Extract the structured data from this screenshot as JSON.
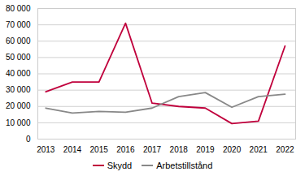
{
  "chart_data": {
    "type": "line",
    "x": [
      2013,
      2014,
      2015,
      2016,
      2017,
      2018,
      2019,
      2020,
      2021,
      2022
    ],
    "series": [
      {
        "name": "Skydd",
        "color": "#c0003c",
        "values": [
          29000,
          35000,
          35000,
          71000,
          22000,
          20000,
          19000,
          9500,
          11000,
          57000
        ]
      },
      {
        "name": "Arbetstillstånd",
        "color": "#888888",
        "values": [
          19000,
          16000,
          17000,
          16500,
          19000,
          26000,
          28500,
          19500,
          26000,
          27500
        ]
      }
    ],
    "xlim": [
      2012.7,
      2022.4
    ],
    "xticks": [
      2013,
      2014,
      2015,
      2016,
      2017,
      2018,
      2019,
      2020,
      2021,
      2022
    ],
    "ylim": [
      0,
      80000
    ],
    "yticks": [
      0,
      {
        "value": 10000,
        "label": "10 000"
      },
      {
        "value": 20000,
        "label": "20 000"
      },
      {
        "value": 30000,
        "label": "30 000"
      },
      {
        "value": 40000,
        "label": "40 000"
      },
      {
        "value": 50000,
        "label": "50 000"
      },
      {
        "value": 60000,
        "label": "60 000"
      },
      {
        "value": 70000,
        "label": "70 000"
      },
      {
        "value": 80000,
        "label": "80 000"
      }
    ],
    "grid": "y",
    "legend": "bottom"
  }
}
